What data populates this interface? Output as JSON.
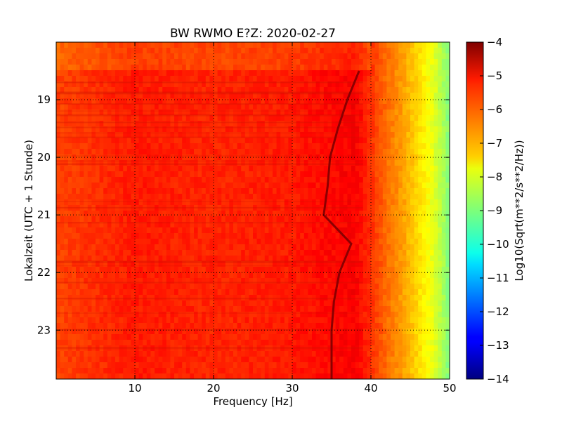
{
  "chart_data": {
    "type": "heatmap",
    "title": "BW RWMO E?Z: 2020-02-27",
    "xlabel": "Frequency [Hz]",
    "ylabel": "Lokalzeit (UTC + 1 Stunde)",
    "xlim": [
      0,
      50
    ],
    "ylim": [
      18.0,
      23.85
    ],
    "y_inverted": true,
    "x_ticks": [
      10,
      20,
      30,
      40,
      50
    ],
    "y_ticks": [
      19,
      20,
      21,
      22,
      23
    ],
    "grid": true,
    "grid_style": "dotted",
    "colorbar": {
      "label": "Log10(Sqrt(m**2/s**2/Hz))",
      "range": [
        -14,
        -4
      ],
      "ticks": [
        -4,
        -5,
        -6,
        -7,
        -8,
        -9,
        -10,
        -11,
        -12,
        -13,
        -14
      ],
      "colormap": "jet"
    },
    "base_level_by_frequency": [
      {
        "f": 0,
        "v": -5.9
      },
      {
        "f": 10,
        "v": -5.5
      },
      {
        "f": 20,
        "v": -5.6
      },
      {
        "f": 30,
        "v": -5.5
      },
      {
        "f": 38,
        "v": -5.2
      },
      {
        "f": 40,
        "v": -5.7
      },
      {
        "f": 42,
        "v": -6.3
      },
      {
        "f": 44,
        "v": -6.8
      },
      {
        "f": 46,
        "v": -7.4
      },
      {
        "f": 48,
        "v": -8.0
      },
      {
        "f": 50,
        "v": -9.0
      }
    ],
    "tonal_line_track": [
      {
        "t": 18.5,
        "f": 38.5
      },
      {
        "t": 19.0,
        "f": 37.0
      },
      {
        "t": 19.5,
        "f": 35.8
      },
      {
        "t": 20.0,
        "f": 34.8
      },
      {
        "t": 20.5,
        "f": 34.5
      },
      {
        "t": 21.0,
        "f": 34.0
      },
      {
        "t": 21.5,
        "f": 37.5
      },
      {
        "t": 22.0,
        "f": 36.0
      },
      {
        "t": 22.5,
        "f": 35.3
      },
      {
        "t": 23.0,
        "f": 35.0
      },
      {
        "t": 23.85,
        "f": 35.0
      }
    ],
    "data_gap_before": 18.45
  }
}
